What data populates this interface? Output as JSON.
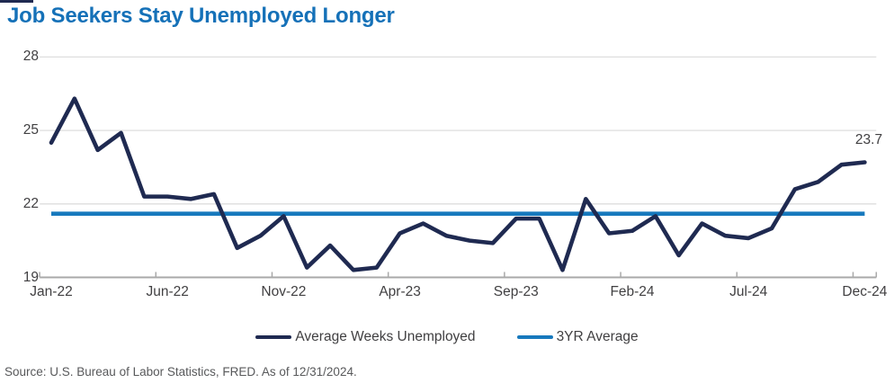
{
  "title": "Job Seekers Stay Unemployed Longer",
  "source_note": "Source: U.S. Bureau of Labor Statistics, FRED. As of 12/31/2024.",
  "colors": {
    "title": "#1571b8",
    "series_line": "#1f2a51",
    "average_line": "#1779bd",
    "gridline": "#dedede",
    "axis": "#a9a9a9",
    "tick_text": "#414042",
    "annotation_text": "#414042",
    "source_text": "#58595b"
  },
  "legend": {
    "items": [
      {
        "label": "Average Weeks Unemployed",
        "color": "#1f2a51"
      },
      {
        "label": "3YR Average",
        "color": "#1779bd"
      }
    ]
  },
  "chart_data": {
    "type": "line",
    "title": "Job Seekers Stay Unemployed Longer",
    "x": [
      "Jan-22",
      "Feb-22",
      "Mar-22",
      "Apr-22",
      "May-22",
      "Jun-22",
      "Jul-22",
      "Aug-22",
      "Sep-22",
      "Oct-22",
      "Nov-22",
      "Dec-22",
      "Jan-23",
      "Feb-23",
      "Mar-23",
      "Apr-23",
      "May-23",
      "Jun-23",
      "Jul-23",
      "Aug-23",
      "Sep-23",
      "Oct-23",
      "Nov-23",
      "Dec-23",
      "Jan-24",
      "Feb-24",
      "Mar-24",
      "Apr-24",
      "May-24",
      "Jun-24",
      "Jul-24",
      "Aug-24",
      "Sep-24",
      "Oct-24",
      "Nov-24",
      "Dec-24"
    ],
    "series": [
      {
        "name": "Average Weeks Unemployed",
        "color": "#1f2a51",
        "values": [
          24.5,
          26.3,
          24.2,
          24.9,
          22.3,
          22.3,
          22.2,
          22.4,
          20.2,
          20.7,
          21.5,
          19.4,
          20.3,
          19.3,
          19.4,
          20.8,
          21.2,
          20.7,
          20.5,
          20.4,
          21.4,
          21.4,
          19.3,
          22.2,
          20.8,
          20.9,
          21.5,
          19.9,
          21.2,
          20.7,
          20.6,
          21.0,
          22.6,
          22.9,
          23.6,
          23.7
        ]
      },
      {
        "name": "3YR Average",
        "color": "#1779bd",
        "constant_value": 21.6
      }
    ],
    "x_tick_labels": [
      "Jan-22",
      "Jun-22",
      "Nov-22",
      "Apr-23",
      "Sep-23",
      "Feb-24",
      "Jul-24",
      "Dec-24"
    ],
    "y_ticks_desc": [
      "28",
      "25",
      "22",
      "19"
    ],
    "ylim": [
      19,
      28
    ],
    "grid": "horizontal-only",
    "legend_position": "bottom-center",
    "end_label": "23.7"
  }
}
